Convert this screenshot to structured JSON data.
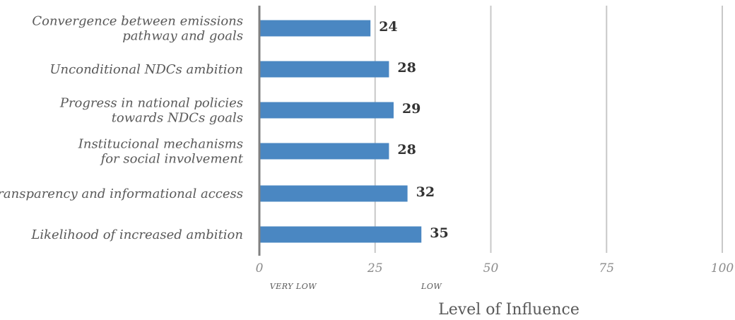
{
  "chart_data": {
    "type": "bar",
    "orientation": "horizontal",
    "categories": [
      [
        "Convergence between emissions",
        "pathway and  goals"
      ],
      [
        "Unconditional NDCs ambition"
      ],
      [
        "Progress in national policies",
        "towards NDCs goals"
      ],
      [
        "Institucional mechanisms",
        "for social involvement"
      ],
      [
        "Transparency and informational access"
      ],
      [
        "Likelihood of increased ambition"
      ]
    ],
    "values": [
      24,
      28,
      29,
      28,
      32,
      35
    ],
    "value_labels": [
      "24",
      "28",
      "29",
      "28",
      "32",
      "35"
    ],
    "xlim": [
      0,
      100
    ],
    "xticks": [
      0,
      25,
      50,
      75,
      100
    ],
    "xtick_labels": [
      "0",
      "25",
      "50",
      "75",
      "100"
    ],
    "level_labels": [
      {
        "text": "VERY LOW",
        "at": 12.5
      },
      {
        "text": "LOW",
        "at": 37.5
      }
    ],
    "xlabel": "Level of Influence",
    "grid": true,
    "colors": {
      "bar": "#4a87c2",
      "grid": "#c8c8c8",
      "axis": "#808080"
    }
  }
}
